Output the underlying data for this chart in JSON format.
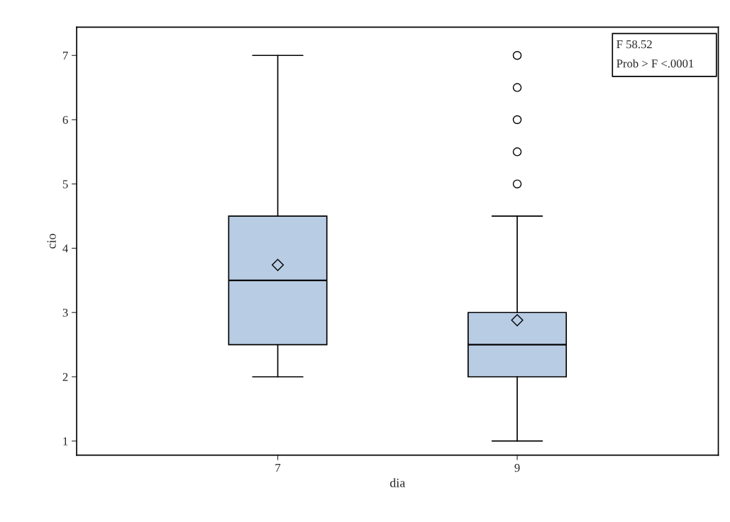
{
  "chart_data": {
    "type": "box",
    "xlabel": "dia",
    "ylabel": "cio",
    "categories": [
      "7",
      "9"
    ],
    "boxes": [
      {
        "low": 2,
        "q1": 2.5,
        "median": 3.5,
        "q3": 4.5,
        "high": 7,
        "mean": 3.74
      },
      {
        "low": 1,
        "q1": 2,
        "median": 2.5,
        "q3": 3,
        "high": 4.5,
        "mean": 2.88,
        "outliers": [
          5,
          5.5,
          6,
          6.5,
          7
        ]
      }
    ],
    "color": "#b8cce4",
    "ylim": [
      0.78,
      7.44
    ],
    "yticks": [
      1,
      2,
      3,
      4,
      5,
      6,
      7
    ],
    "grid": false,
    "marker": "diamond",
    "annotations": [
      "F 58.52",
      "Prob > F <.0001"
    ]
  }
}
